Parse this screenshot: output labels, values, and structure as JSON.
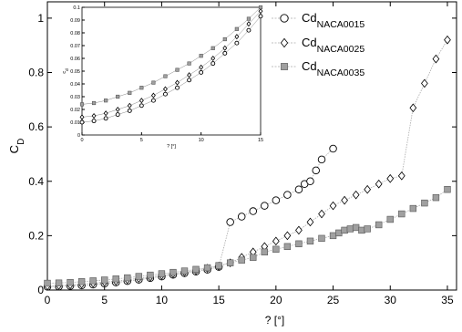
{
  "chart_data": [
    {
      "type": "scatter",
      "xlabel": "? [°]",
      "ylabel": "C",
      "ylabel_sub": "D",
      "xlim": [
        0,
        35.8
      ],
      "ylim": [
        0,
        1.06
      ],
      "xticks": [
        0,
        5,
        10,
        15,
        20,
        25,
        30,
        35
      ],
      "yticks": [
        0,
        0.2,
        0.4,
        0.6,
        0.8,
        1
      ],
      "ytick_labels": [
        "0",
        "0.2",
        "0.4",
        "0.6",
        "0.8",
        "1"
      ],
      "grid": false,
      "legend_position": "top-right",
      "series": [
        {
          "name": "Cd",
          "name_sub": "NACA0015",
          "marker": "circle",
          "x": [
            0,
            1,
            2,
            3,
            4,
            5,
            6,
            7,
            8,
            9,
            10,
            11,
            12,
            13,
            14,
            15,
            16,
            17,
            18,
            19,
            20,
            21,
            22,
            22.5,
            23,
            23.5,
            24,
            25
          ],
          "y": [
            0.012,
            0.013,
            0.015,
            0.017,
            0.02,
            0.024,
            0.028,
            0.033,
            0.038,
            0.044,
            0.05,
            0.056,
            0.062,
            0.068,
            0.075,
            0.085,
            0.25,
            0.27,
            0.29,
            0.31,
            0.33,
            0.35,
            0.37,
            0.39,
            0.4,
            0.44,
            0.48,
            0.52
          ]
        },
        {
          "name": "Cd",
          "name_sub": "NACA0025",
          "marker": "diamond",
          "x": [
            0,
            1,
            2,
            3,
            4,
            5,
            6,
            7,
            8,
            9,
            10,
            11,
            12,
            13,
            14,
            15,
            16,
            17,
            18,
            19,
            20,
            21,
            22,
            23,
            24,
            25,
            26,
            27,
            28,
            29,
            30,
            31,
            32,
            33,
            34,
            35
          ],
          "y": [
            0.015,
            0.017,
            0.019,
            0.022,
            0.025,
            0.029,
            0.033,
            0.038,
            0.043,
            0.048,
            0.054,
            0.06,
            0.066,
            0.072,
            0.08,
            0.088,
            0.1,
            0.12,
            0.14,
            0.16,
            0.18,
            0.2,
            0.22,
            0.25,
            0.28,
            0.31,
            0.33,
            0.35,
            0.37,
            0.39,
            0.41,
            0.42,
            0.67,
            0.76,
            0.85,
            0.92
          ]
        },
        {
          "name": "Cd",
          "name_sub": "NACA0035",
          "marker": "square",
          "x": [
            0,
            1,
            2,
            3,
            4,
            5,
            6,
            7,
            8,
            9,
            10,
            11,
            12,
            13,
            14,
            15,
            16,
            17,
            18,
            19,
            20,
            21,
            22,
            23,
            24,
            25,
            25.5,
            26,
            26.5,
            27,
            27.5,
            28,
            29,
            30,
            31,
            32,
            33,
            34,
            35
          ],
          "y": [
            0.025,
            0.026,
            0.028,
            0.031,
            0.034,
            0.037,
            0.041,
            0.045,
            0.05,
            0.055,
            0.06,
            0.065,
            0.07,
            0.076,
            0.082,
            0.09,
            0.1,
            0.11,
            0.12,
            0.14,
            0.15,
            0.16,
            0.17,
            0.18,
            0.19,
            0.2,
            0.21,
            0.22,
            0.225,
            0.23,
            0.22,
            0.225,
            0.24,
            0.26,
            0.28,
            0.3,
            0.32,
            0.34,
            0.37
          ]
        }
      ]
    },
    {
      "type": "scatter",
      "inset": true,
      "xlabel": "? [°]",
      "ylabel": "c",
      "ylabel_sub": "d",
      "xlim": [
        0,
        15
      ],
      "ylim": [
        0,
        0.1
      ],
      "xticks": [
        0,
        5,
        10,
        15
      ],
      "yticks": [
        0,
        0.01,
        0.02,
        0.03,
        0.04,
        0.05,
        0.06,
        0.07,
        0.08,
        0.09,
        0.1
      ],
      "ytick_labels": [
        "0",
        "0.01",
        "0.02",
        "0.03",
        "0.04",
        "0.05",
        "0.06",
        "0.07",
        "0.08",
        "0.09",
        "0.1"
      ],
      "series": [
        {
          "marker": "circle",
          "x": [
            0,
            1,
            2,
            3,
            4,
            5,
            6,
            7,
            8,
            9,
            10,
            11,
            12,
            13,
            14,
            15
          ],
          "y": [
            0.01,
            0.011,
            0.013,
            0.016,
            0.019,
            0.023,
            0.027,
            0.032,
            0.037,
            0.043,
            0.049,
            0.056,
            0.064,
            0.072,
            0.082,
            0.093
          ]
        },
        {
          "marker": "diamond",
          "x": [
            0,
            1,
            2,
            3,
            4,
            5,
            6,
            7,
            8,
            9,
            10,
            11,
            12,
            13,
            14,
            15
          ],
          "y": [
            0.014,
            0.015,
            0.017,
            0.02,
            0.023,
            0.027,
            0.031,
            0.036,
            0.041,
            0.047,
            0.053,
            0.06,
            0.068,
            0.077,
            0.087,
            0.097
          ]
        },
        {
          "marker": "square",
          "x": [
            0,
            1,
            2,
            3,
            4,
            5,
            6,
            7,
            8,
            9,
            10,
            11,
            12,
            13,
            14,
            15
          ],
          "y": [
            0.024,
            0.025,
            0.027,
            0.03,
            0.033,
            0.037,
            0.041,
            0.046,
            0.051,
            0.056,
            0.062,
            0.068,
            0.075,
            0.083,
            0.091,
            0.1
          ]
        }
      ]
    }
  ]
}
